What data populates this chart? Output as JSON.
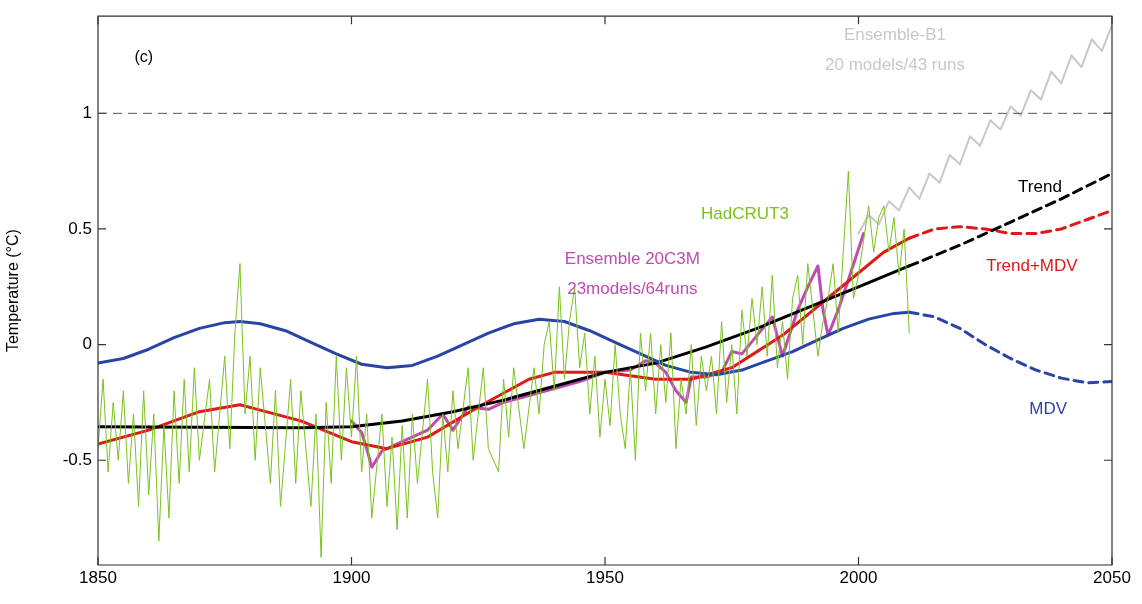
{
  "chart_data": {
    "type": "line",
    "ylabel": "Temperature (°C)",
    "annotations": [
      "(c)"
    ],
    "xlim": [
      1850,
      2050
    ],
    "xticks": [
      1850,
      1900,
      1950,
      2000,
      2050
    ],
    "ylim": [
      -0.953,
      1.42
    ],
    "yticks": [
      -0.5,
      0,
      0.5,
      1
    ],
    "grid": false,
    "legend": false,
    "marker": "none",
    "line_style": "solid",
    "ref_lines": [
      {
        "axis": "y",
        "value": 1,
        "color": "#555555",
        "line_style": "dashed"
      }
    ],
    "series": [
      {
        "name": "HadCRUT3",
        "color": "#7cc21e",
        "x": [
          1850,
          1851,
          1852,
          1853,
          1854,
          1855,
          1856,
          1857,
          1858,
          1859,
          1860,
          1861,
          1862,
          1863,
          1864,
          1865,
          1866,
          1867,
          1868,
          1869,
          1870,
          1872,
          1873,
          1875,
          1876,
          1877,
          1878,
          1879,
          1880,
          1881,
          1882,
          1884,
          1885,
          1886,
          1888,
          1889,
          1890,
          1892,
          1893,
          1894,
          1895,
          1896,
          1897,
          1898,
          1899,
          1900,
          1901,
          1902,
          1903,
          1904,
          1906,
          1907,
          1908,
          1909,
          1910,
          1911,
          1912,
          1913,
          1915,
          1916,
          1917,
          1918,
          1919,
          1920,
          1921,
          1923,
          1924,
          1926,
          1927,
          1929,
          1930,
          1931,
          1932,
          1934,
          1936,
          1937,
          1938,
          1939,
          1940,
          1941,
          1942,
          1943,
          1944,
          1945,
          1946,
          1947,
          1948,
          1949,
          1950,
          1951,
          1952,
          1953,
          1954,
          1955,
          1956,
          1957,
          1958,
          1959,
          1960,
          1961,
          1962,
          1963,
          1964,
          1965,
          1966,
          1967,
          1968,
          1969,
          1970,
          1971,
          1972,
          1973,
          1974,
          1975,
          1976,
          1977,
          1978,
          1979,
          1980,
          1981,
          1982,
          1983,
          1984,
          1985,
          1986,
          1987,
          1988,
          1989,
          1990,
          1991,
          1992,
          1993,
          1994,
          1995,
          1996,
          1997,
          1998,
          1999,
          2000,
          2001,
          2002,
          2003,
          2004,
          2005,
          2006,
          2007,
          2008,
          2009,
          2010
        ],
        "values": [
          -0.45,
          -0.15,
          -0.55,
          -0.25,
          -0.5,
          -0.2,
          -0.6,
          -0.3,
          -0.7,
          -0.2,
          -0.65,
          -0.3,
          -0.85,
          -0.35,
          -0.75,
          -0.2,
          -0.6,
          -0.15,
          -0.55,
          -0.1,
          -0.5,
          -0.15,
          -0.55,
          -0.05,
          -0.45,
          0.05,
          0.35,
          -0.3,
          -0.05,
          -0.5,
          -0.1,
          -0.6,
          -0.2,
          -0.7,
          -0.15,
          -0.6,
          -0.2,
          -0.7,
          -0.3,
          -0.92,
          -0.25,
          -0.6,
          -0.05,
          -0.5,
          -0.1,
          -0.4,
          -0.05,
          -0.55,
          -0.3,
          -0.75,
          -0.3,
          -0.7,
          -0.4,
          -0.8,
          -0.35,
          -0.75,
          -0.3,
          -0.6,
          -0.15,
          -0.55,
          -0.75,
          -0.3,
          -0.55,
          -0.2,
          -0.45,
          -0.1,
          -0.5,
          -0.1,
          -0.45,
          -0.55,
          -0.15,
          -0.4,
          -0.1,
          -0.45,
          -0.1,
          -0.3,
          0.0,
          0.1,
          -0.2,
          0.25,
          -0.15,
          0.1,
          0.25,
          -0.1,
          0.05,
          -0.3,
          -0.05,
          -0.4,
          -0.15,
          -0.35,
          0.0,
          -0.3,
          -0.45,
          -0.1,
          -0.5,
          0.05,
          -0.2,
          0.05,
          -0.3,
          0.0,
          -0.25,
          0.05,
          -0.45,
          -0.15,
          -0.3,
          0.0,
          -0.35,
          -0.05,
          -0.2,
          -0.05,
          -0.3,
          0.1,
          -0.25,
          0.0,
          -0.3,
          0.15,
          -0.05,
          0.2,
          0.0,
          0.25,
          -0.05,
          0.3,
          -0.1,
          0.1,
          -0.15,
          0.2,
          0.3,
          0.0,
          0.35,
          0.15,
          -0.05,
          0.1,
          0.2,
          0.35,
          0.05,
          0.4,
          0.75,
          0.2,
          0.3,
          0.45,
          0.6,
          0.4,
          0.55,
          0.6,
          0.4,
          0.55,
          0.3,
          0.5,
          0.05
        ]
      },
      {
        "name": "Ensemble-B1\n20 models/43 runs",
        "color": "#c8c8c8",
        "x": [
          2000,
          2002,
          2004,
          2006,
          2008,
          2010,
          2012,
          2014,
          2016,
          2018,
          2020,
          2022,
          2024,
          2026,
          2028,
          2030,
          2032,
          2034,
          2036,
          2038,
          2040,
          2042,
          2044,
          2046,
          2048,
          2050
        ],
        "values": [
          0.48,
          0.56,
          0.52,
          0.62,
          0.58,
          0.68,
          0.63,
          0.74,
          0.7,
          0.82,
          0.78,
          0.9,
          0.86,
          0.97,
          0.93,
          1.03,
          0.99,
          1.1,
          1.06,
          1.18,
          1.13,
          1.25,
          1.2,
          1.32,
          1.27,
          1.38
        ]
      },
      {
        "color": "#2a44a6",
        "x": [
          1850,
          1855,
          1860,
          1865,
          1870,
          1875,
          1878,
          1882,
          1887,
          1892,
          1897,
          1902,
          1907,
          1912,
          1917,
          1922,
          1927,
          1932,
          1937,
          1942,
          1947,
          1952,
          1957,
          1962,
          1967,
          1972,
          1977,
          1982,
          1987,
          1992,
          1997,
          2002,
          2007,
          2010
        ],
        "values": [
          -0.08,
          -0.06,
          -0.02,
          0.03,
          0.07,
          0.095,
          0.1,
          0.09,
          0.06,
          0.01,
          -0.04,
          -0.085,
          -0.1,
          -0.09,
          -0.05,
          0.0,
          0.05,
          0.09,
          0.11,
          0.1,
          0.06,
          0.01,
          -0.04,
          -0.09,
          -0.12,
          -0.13,
          -0.11,
          -0.07,
          -0.03,
          0.02,
          0.07,
          0.11,
          0.135,
          0.14
        ]
      },
      {
        "name": "MDV",
        "color": "#2a44a6",
        "line_style": "dashed",
        "x": [
          2010,
          2015,
          2020,
          2025,
          2030,
          2035,
          2040,
          2045,
          2050
        ],
        "values": [
          0.14,
          0.12,
          0.07,
          0.0,
          -0.06,
          -0.11,
          -0.145,
          -0.165,
          -0.16
        ]
      },
      {
        "color": "#000000",
        "x": [
          1850,
          1870,
          1890,
          1900,
          1910,
          1920,
          1930,
          1940,
          1950,
          1960,
          1970,
          1980,
          1990,
          2000,
          2010
        ],
        "values": [
          -0.355,
          -0.357,
          -0.36,
          -0.355,
          -0.33,
          -0.29,
          -0.24,
          -0.18,
          -0.12,
          -0.08,
          -0.01,
          0.07,
          0.16,
          0.25,
          0.34
        ]
      },
      {
        "name": "Trend",
        "color": "#000000",
        "line_style": "dashed",
        "x": [
          2010,
          2020,
          2030,
          2040,
          2050
        ],
        "values": [
          0.34,
          0.43,
          0.53,
          0.63,
          0.74
        ]
      },
      {
        "color": "#e01818",
        "x": [
          1850,
          1860,
          1870,
          1878,
          1890,
          1900,
          1907,
          1915,
          1925,
          1935,
          1940,
          1950,
          1960,
          1967,
          1975,
          1985,
          1995,
          2005,
          2010
        ],
        "values": [
          -0.43,
          -0.37,
          -0.29,
          -0.26,
          -0.33,
          -0.42,
          -0.45,
          -0.4,
          -0.27,
          -0.15,
          -0.12,
          -0.12,
          -0.15,
          -0.15,
          -0.1,
          0.04,
          0.22,
          0.4,
          0.46
        ]
      },
      {
        "name": "Trend+MDV",
        "color": "#e01818",
        "line_style": "dashed",
        "x": [
          2010,
          2015,
          2020,
          2025,
          2030,
          2035,
          2040,
          2045,
          2050
        ],
        "values": [
          0.46,
          0.5,
          0.51,
          0.5,
          0.48,
          0.48,
          0.5,
          0.54,
          0.58
        ]
      },
      {
        "name": "Ensemble 20C3M\n23models/64runs",
        "color": "#c04ab4",
        "x": [
          1900,
          1902,
          1903,
          1904,
          1906,
          1910,
          1915,
          1918,
          1920,
          1923,
          1927,
          1930,
          1935,
          1940,
          1945,
          1950,
          1955,
          1958,
          1960,
          1962,
          1964,
          1966,
          1967,
          1970,
          1973,
          1975,
          1977,
          1980,
          1983,
          1985,
          1988,
          1990,
          1992,
          1993,
          1994,
          1996,
          1998,
          2001
        ],
        "values": [
          -0.33,
          -0.38,
          -0.45,
          -0.53,
          -0.46,
          -0.42,
          -0.37,
          -0.3,
          -0.37,
          -0.27,
          -0.28,
          -0.25,
          -0.22,
          -0.19,
          -0.16,
          -0.12,
          -0.11,
          -0.07,
          -0.08,
          -0.12,
          -0.2,
          -0.25,
          -0.14,
          -0.14,
          -0.12,
          -0.03,
          -0.04,
          0.04,
          0.12,
          -0.05,
          0.15,
          0.25,
          0.34,
          0.15,
          0.04,
          0.15,
          0.28,
          0.48
        ]
      }
    ]
  }
}
